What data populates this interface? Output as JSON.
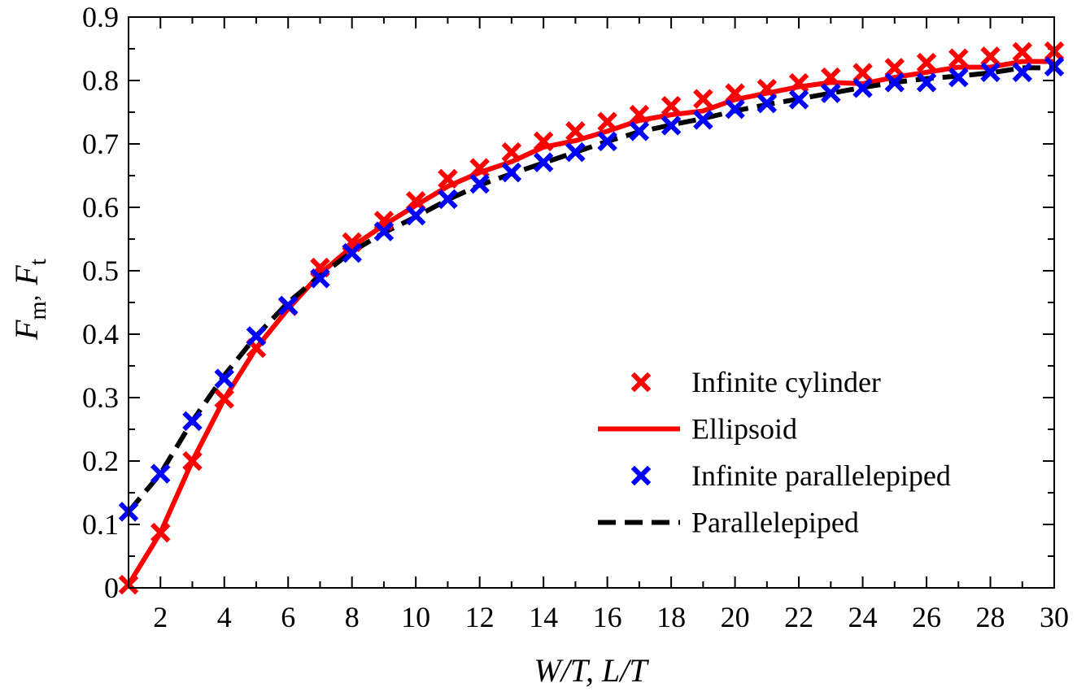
{
  "chart_data": {
    "type": "line",
    "xlabel": "W/T,  L/T",
    "ylabel_main_1": "F",
    "ylabel_sub_1": "m",
    "ylabel_sep": ",",
    "ylabel_main_2": "F",
    "ylabel_sub_2": "t",
    "xlim": [
      1,
      30
    ],
    "ylim": [
      0,
      0.9
    ],
    "x_ticks": [
      2,
      4,
      6,
      8,
      10,
      12,
      14,
      16,
      18,
      20,
      22,
      24,
      26,
      28,
      30
    ],
    "y_ticks": [
      0,
      0.1,
      0.2,
      0.3,
      0.4,
      0.5,
      0.6,
      0.7,
      0.8,
      0.9
    ],
    "y_tick_labels": [
      "0",
      "0.1",
      "0.2",
      "0.3",
      "0.4",
      "0.5",
      "0.6",
      "0.7",
      "0.8",
      "0.9"
    ],
    "grid": false,
    "legend_position": "lower-right",
    "series": [
      {
        "name": "Infinite cylinder",
        "style": "marker-x",
        "color": "#ff0000",
        "x": [
          1,
          2,
          3,
          4,
          5,
          6,
          7,
          8,
          9,
          10,
          11,
          12,
          13,
          14,
          15,
          16,
          17,
          18,
          19,
          20,
          21,
          22,
          23,
          24,
          25,
          26,
          27,
          28,
          29,
          30
        ],
        "y": [
          0.005,
          0.087,
          0.2,
          0.298,
          0.378,
          0.444,
          0.505,
          0.545,
          0.579,
          0.61,
          0.645,
          0.662,
          0.687,
          0.704,
          0.72,
          0.735,
          0.746,
          0.76,
          0.771,
          0.78,
          0.787,
          0.796,
          0.805,
          0.812,
          0.82,
          0.828,
          0.835,
          0.838,
          0.845,
          0.846
        ]
      },
      {
        "name": "Ellipsoid",
        "style": "solid",
        "color": "#ff0000",
        "x": [
          1,
          2,
          3,
          4,
          5,
          6,
          7,
          8,
          9,
          10,
          11,
          12,
          13,
          14,
          15,
          16,
          17,
          18,
          19,
          20,
          21,
          22,
          23,
          24,
          25,
          26,
          27,
          28,
          29,
          30
        ],
        "y": [
          0.005,
          0.087,
          0.2,
          0.298,
          0.378,
          0.44,
          0.495,
          0.538,
          0.572,
          0.603,
          0.633,
          0.655,
          0.672,
          0.695,
          0.705,
          0.72,
          0.737,
          0.746,
          0.752,
          0.77,
          0.78,
          0.79,
          0.797,
          0.795,
          0.805,
          0.813,
          0.821,
          0.821,
          0.83,
          0.83
        ]
      },
      {
        "name": "Infinite parallelepiped",
        "style": "marker-x",
        "color": "#0000ff",
        "x": [
          1,
          2,
          3,
          4,
          5,
          6,
          7,
          8,
          9,
          10,
          11,
          12,
          13,
          14,
          15,
          16,
          17,
          18,
          19,
          20,
          21,
          22,
          23,
          24,
          25,
          26,
          27,
          28,
          29,
          30
        ],
        "y": [
          0.12,
          0.18,
          0.263,
          0.33,
          0.397,
          0.445,
          0.488,
          0.528,
          0.562,
          0.587,
          0.613,
          0.637,
          0.655,
          0.671,
          0.687,
          0.704,
          0.72,
          0.729,
          0.738,
          0.755,
          0.764,
          0.77,
          0.78,
          0.788,
          0.797,
          0.797,
          0.805,
          0.813,
          0.813,
          0.822
        ]
      },
      {
        "name": "Parallelepiped",
        "style": "dashed",
        "color": "#000000",
        "x": [
          1,
          2,
          3,
          4,
          5,
          6,
          7,
          8,
          9,
          10,
          11,
          12,
          13,
          14,
          15,
          16,
          17,
          18,
          19,
          20,
          21,
          22,
          23,
          24,
          25,
          26,
          27,
          28,
          29,
          30
        ],
        "y": [
          0.12,
          0.18,
          0.263,
          0.335,
          0.397,
          0.45,
          0.492,
          0.53,
          0.56,
          0.585,
          0.612,
          0.635,
          0.653,
          0.67,
          0.687,
          0.704,
          0.719,
          0.73,
          0.74,
          0.752,
          0.762,
          0.771,
          0.78,
          0.789,
          0.797,
          0.803,
          0.807,
          0.812,
          0.82,
          0.82
        ]
      }
    ]
  }
}
